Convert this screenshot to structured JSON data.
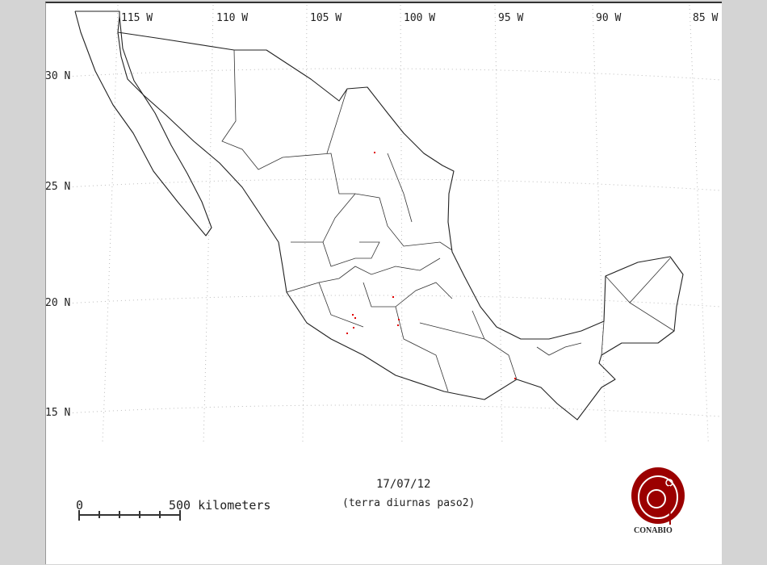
{
  "map": {
    "longitude_labels": [
      "115 W",
      "110 W",
      "105 W",
      "100 W",
      "95 W",
      "90 W",
      "85 W"
    ],
    "latitude_labels": [
      "30 N",
      "25 N",
      "20 N",
      "15 N"
    ],
    "date": "17/07/12",
    "subtitle": "(terra diurnas paso2)",
    "scale": {
      "start_label": "0",
      "end_label": "500 kilometers"
    },
    "logo_text": "CONABIO",
    "colors": {
      "fire_points": "#e00000",
      "logo": "#9b0000",
      "outline": "#222222",
      "background": "#d4d4d4"
    }
  }
}
